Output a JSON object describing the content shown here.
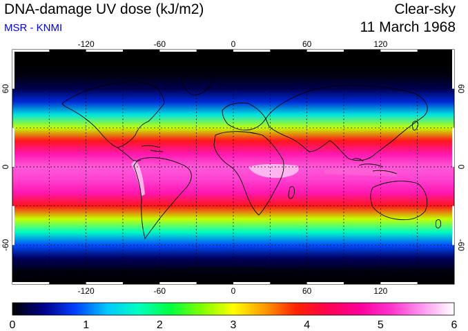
{
  "header": {
    "title": "DNA-damage UV dose (kJ/m2)",
    "subtitle": "MSR - KNMI",
    "condition": "Clear-sky",
    "date": "11 March 1968"
  },
  "map": {
    "projection": "equirectangular",
    "lon_range": [
      -180,
      180
    ],
    "lat_range": [
      -90,
      90
    ],
    "lon_ticks": [
      -120,
      -60,
      0,
      60,
      120
    ],
    "lat_ticks": [
      -60,
      0,
      60
    ],
    "lon_tick_labels": [
      "-120",
      "-60",
      "0",
      "60",
      "120"
    ],
    "lat_tick_labels": [
      "-60",
      "0",
      "60"
    ],
    "grid_spacing_deg": 30,
    "gridlines": "dashed",
    "coastlines": true
  },
  "chart_data": {
    "type": "heatmap",
    "variable": "DNA-damage UV dose",
    "units": "kJ/m2",
    "value_range": [
      0,
      6
    ],
    "colorbar_ticks": [
      0,
      1,
      2,
      3,
      4,
      5,
      6
    ],
    "colorbar_labels": [
      "0",
      "1",
      "2",
      "3",
      "4",
      "5",
      "6"
    ],
    "colormap": [
      "#000000",
      "#00008b",
      "#0040ff",
      "#00c8ff",
      "#00ffc0",
      "#00ff40",
      "#80ff00",
      "#ffff00",
      "#ff9900",
      "#ff2000",
      "#ff0050",
      "#ff0099",
      "#ff33cc",
      "#ff99ee",
      "#ffffff"
    ],
    "zonal_profile": [
      {
        "lat": -90,
        "value": 0.0
      },
      {
        "lat": -80,
        "value": 0.05
      },
      {
        "lat": -70,
        "value": 0.3
      },
      {
        "lat": -60,
        "value": 0.9
      },
      {
        "lat": -50,
        "value": 1.7
      },
      {
        "lat": -40,
        "value": 2.8
      },
      {
        "lat": -30,
        "value": 4.0
      },
      {
        "lat": -20,
        "value": 4.9
      },
      {
        "lat": -10,
        "value": 5.2
      },
      {
        "lat": 0,
        "value": 5.3
      },
      {
        "lat": 10,
        "value": 4.9
      },
      {
        "lat": 20,
        "value": 4.0
      },
      {
        "lat": 30,
        "value": 2.8
      },
      {
        "lat": 40,
        "value": 1.5
      },
      {
        "lat": 50,
        "value": 0.7
      },
      {
        "lat": 60,
        "value": 0.25
      },
      {
        "lat": 70,
        "value": 0.05
      },
      {
        "lat": 80,
        "value": 0.0
      },
      {
        "lat": 90,
        "value": 0.0
      }
    ]
  }
}
